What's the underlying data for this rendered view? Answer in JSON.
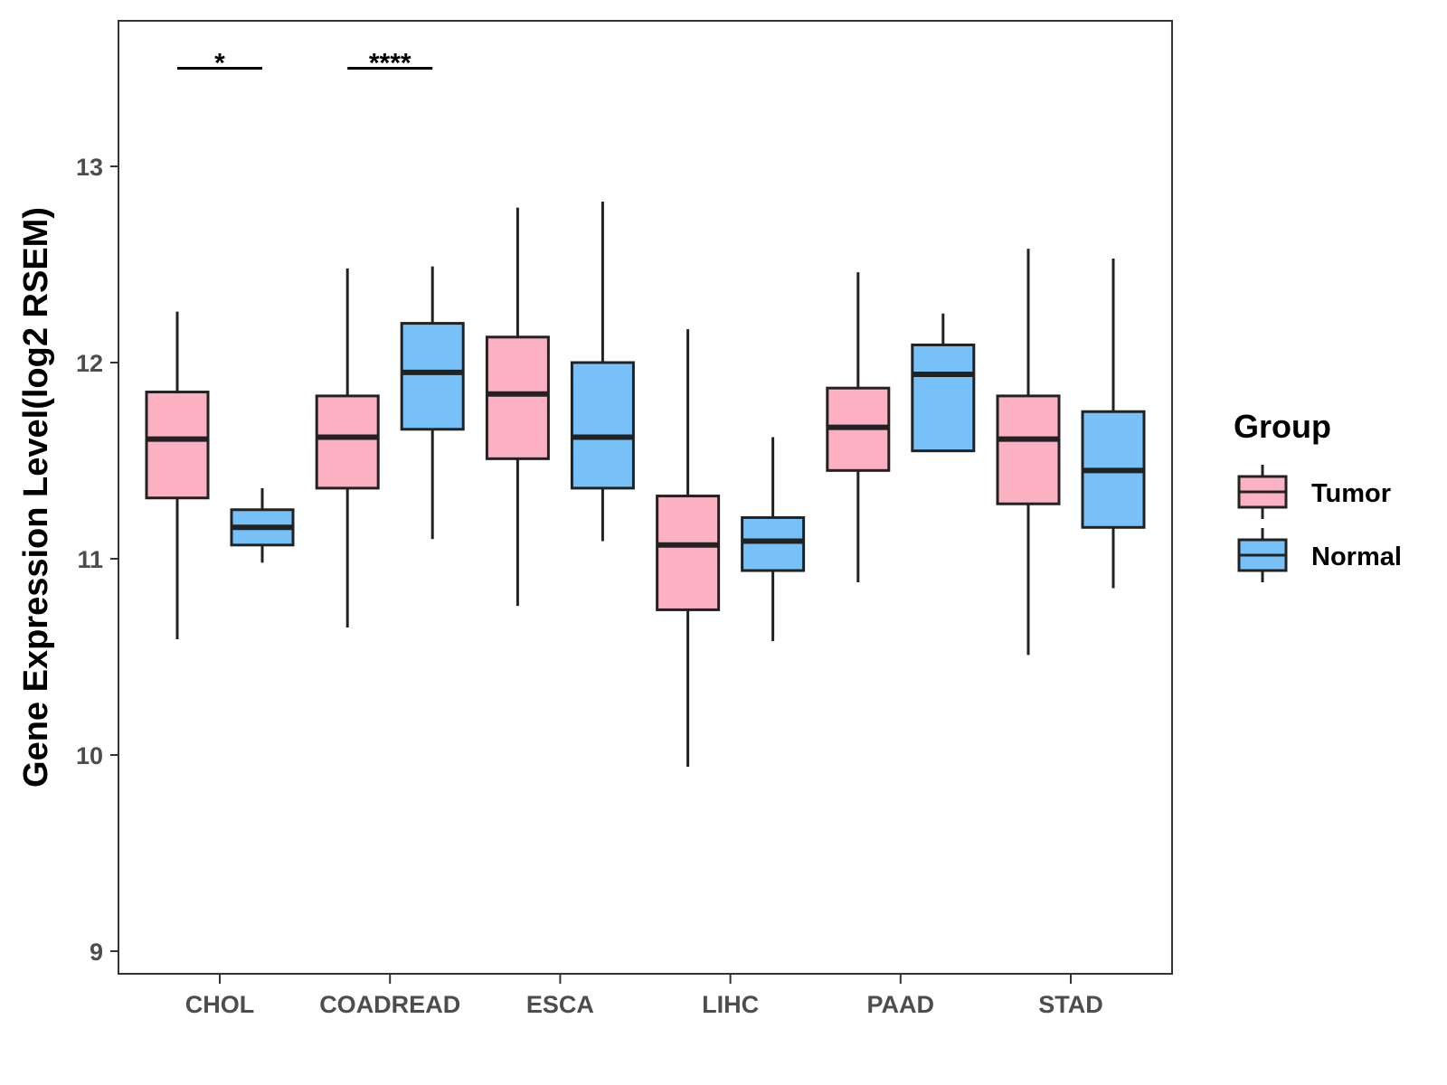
{
  "chart_data": {
    "type": "boxplot",
    "title": "",
    "xlabel": "",
    "ylabel": "Gene Expression Level(log2 RSEM)",
    "ylim": [
      8.9,
      13.75
    ],
    "yticks": [
      9,
      10,
      11,
      12,
      13
    ],
    "grid": false,
    "legend": {
      "title": "Group",
      "position": "right",
      "entries": [
        {
          "name": "Tumor",
          "color": "#FBB1C2"
        },
        {
          "name": "Normal",
          "color": "#77C1F8"
        }
      ]
    },
    "categories": [
      "CHOL",
      "COADREAD",
      "ESCA",
      "LIHC",
      "PAAD",
      "STAD"
    ],
    "series": [
      {
        "name": "Tumor",
        "color": "#FBB1C2",
        "boxes": [
          {
            "whisker_low": 10.59,
            "q1": 11.31,
            "median": 11.61,
            "q3": 11.85,
            "whisker_high": 12.26
          },
          {
            "whisker_low": 10.65,
            "q1": 11.36,
            "median": 11.62,
            "q3": 11.83,
            "whisker_high": 12.48
          },
          {
            "whisker_low": 10.76,
            "q1": 11.51,
            "median": 11.84,
            "q3": 12.13,
            "whisker_high": 12.79
          },
          {
            "whisker_low": 9.94,
            "q1": 10.74,
            "median": 11.07,
            "q3": 11.32,
            "whisker_high": 12.17
          },
          {
            "whisker_low": 10.88,
            "q1": 11.45,
            "median": 11.67,
            "q3": 11.87,
            "whisker_high": 12.46
          },
          {
            "whisker_low": 10.51,
            "q1": 11.28,
            "median": 11.61,
            "q3": 11.83,
            "whisker_high": 12.58
          }
        ]
      },
      {
        "name": "Normal",
        "color": "#77C1F8",
        "boxes": [
          {
            "whisker_low": 10.98,
            "q1": 11.07,
            "median": 11.16,
            "q3": 11.25,
            "whisker_high": 11.36
          },
          {
            "whisker_low": 11.1,
            "q1": 11.66,
            "median": 11.95,
            "q3": 12.2,
            "whisker_high": 12.49
          },
          {
            "whisker_low": 11.09,
            "q1": 11.36,
            "median": 11.62,
            "q3": 12.0,
            "whisker_high": 12.82
          },
          {
            "whisker_low": 10.58,
            "q1": 10.94,
            "median": 11.09,
            "q3": 11.21,
            "whisker_high": 11.62
          },
          {
            "whisker_low": 11.55,
            "q1": 11.55,
            "median": 11.94,
            "q3": 12.09,
            "whisker_high": 12.25
          },
          {
            "whisker_low": 10.85,
            "q1": 11.16,
            "median": 11.45,
            "q3": 11.75,
            "whisker_high": 12.53
          }
        ]
      }
    ],
    "annotations": [
      {
        "category": "CHOL",
        "label": "*",
        "y": 13.5
      },
      {
        "category": "COADREAD",
        "label": "****",
        "y": 13.5
      }
    ]
  }
}
